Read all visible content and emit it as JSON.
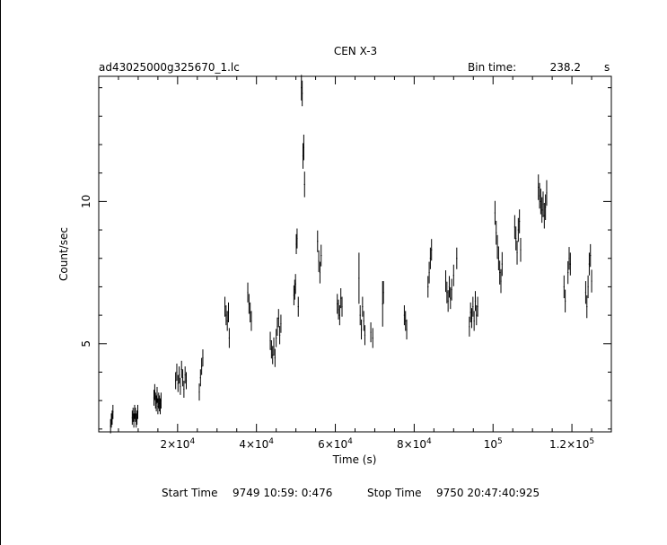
{
  "chart_data": {
    "type": "scatter",
    "title": "CEN X-3",
    "file_label": "ad43025000g325670_1.lc",
    "bin_time_label": "Bin time:",
    "bin_time_value": "238.2",
    "bin_time_unit": "s",
    "xlabel": "Time (s)",
    "ylabel": "Count/sec",
    "xlim": [
      0,
      130000
    ],
    "ylim": [
      1.9,
      14.4
    ],
    "x_ticks": [
      {
        "value": 20000,
        "mantissa": "2×10",
        "exp": "4"
      },
      {
        "value": 40000,
        "mantissa": "4×10",
        "exp": "4"
      },
      {
        "value": 60000,
        "mantissa": "6×10",
        "exp": "4"
      },
      {
        "value": 80000,
        "mantissa": "8×10",
        "exp": "4"
      },
      {
        "value": 100000,
        "mantissa": "10",
        "exp": "5"
      },
      {
        "value": 120000,
        "mantissa": "1.2×10",
        "exp": "5"
      }
    ],
    "y_ticks": [
      {
        "value": 5,
        "label": "5"
      },
      {
        "value": 10,
        "label": "10"
      }
    ],
    "footer": {
      "start_label": "Start Time",
      "start_value": "9749 10:59: 0:476",
      "stop_label": "Stop Time",
      "stop_value": "9750 20:47:40:925"
    },
    "series": [
      {
        "points": [
          [
            3000,
            2.1
          ],
          [
            3200,
            2.3
          ],
          [
            3400,
            2.4
          ],
          [
            3600,
            2.6
          ],
          [
            8500,
            2.4
          ],
          [
            8700,
            2.5
          ],
          [
            8900,
            2.3
          ],
          [
            9100,
            2.6
          ],
          [
            9300,
            2.5
          ],
          [
            9500,
            2.3
          ],
          [
            9700,
            2.4
          ],
          [
            9900,
            2.6
          ],
          [
            14000,
            3.1
          ],
          [
            14200,
            3.3
          ],
          [
            14400,
            3.0
          ],
          [
            14600,
            2.9
          ],
          [
            14800,
            3.2
          ],
          [
            15000,
            2.8
          ],
          [
            15200,
            3.0
          ],
          [
            15400,
            2.9
          ],
          [
            15600,
            2.8
          ],
          [
            15800,
            3.0
          ],
          [
            19500,
            3.7
          ],
          [
            19800,
            4.0
          ],
          [
            20100,
            3.6
          ],
          [
            20400,
            3.9
          ],
          [
            20700,
            3.5
          ],
          [
            21000,
            4.1
          ],
          [
            21300,
            3.8
          ],
          [
            21600,
            3.4
          ],
          [
            21900,
            3.9
          ],
          [
            22200,
            3.7
          ],
          [
            25500,
            3.3
          ],
          [
            25800,
            3.8
          ],
          [
            26100,
            4.2
          ],
          [
            26400,
            4.5
          ],
          [
            32000,
            6.3
          ],
          [
            32300,
            6.0
          ],
          [
            32600,
            5.8
          ],
          [
            32900,
            6.1
          ],
          [
            33100,
            5.2
          ],
          [
            37800,
            6.8
          ],
          [
            38100,
            6.4
          ],
          [
            38400,
            6.1
          ],
          [
            38700,
            5.8
          ],
          [
            43500,
            5.1
          ],
          [
            43800,
            4.8
          ],
          [
            44100,
            4.6
          ],
          [
            44400,
            4.9
          ],
          [
            44700,
            4.5
          ],
          [
            45000,
            5.2
          ],
          [
            45300,
            5.6
          ],
          [
            45600,
            5.9
          ],
          [
            45900,
            5.3
          ],
          [
            46200,
            5.7
          ],
          [
            49500,
            6.7
          ],
          [
            49700,
            6.9
          ],
          [
            49900,
            7.1
          ],
          [
            50100,
            8.5
          ],
          [
            50300,
            8.7
          ],
          [
            50600,
            6.3
          ],
          [
            51400,
            14.0
          ],
          [
            51600,
            13.8
          ],
          [
            51800,
            11.6
          ],
          [
            52000,
            11.9
          ],
          [
            52200,
            10.6
          ],
          [
            55500,
            8.6
          ],
          [
            55800,
            7.9
          ],
          [
            56100,
            7.5
          ],
          [
            56400,
            8.1
          ],
          [
            60500,
            6.4
          ],
          [
            60800,
            6.2
          ],
          [
            61100,
            6.0
          ],
          [
            61400,
            6.6
          ],
          [
            61700,
            6.3
          ],
          [
            66000,
            7.3
          ],
          [
            66300,
            6.0
          ],
          [
            66600,
            5.5
          ],
          [
            66900,
            6.3
          ],
          [
            67200,
            5.8
          ],
          [
            67500,
            5.3
          ],
          [
            69000,
            5.4
          ],
          [
            69500,
            5.2
          ],
          [
            72000,
            6.4
          ],
          [
            72200,
            6.8
          ],
          [
            77500,
            6.0
          ],
          [
            77800,
            5.8
          ],
          [
            78100,
            5.5
          ],
          [
            83500,
            7.0
          ],
          [
            83800,
            7.5
          ],
          [
            84100,
            8.0
          ],
          [
            84400,
            8.3
          ],
          [
            88000,
            7.2
          ],
          [
            88300,
            6.8
          ],
          [
            88600,
            6.5
          ],
          [
            88900,
            7.0
          ],
          [
            89200,
            6.6
          ],
          [
            89500,
            6.9
          ],
          [
            90000,
            7.4
          ],
          [
            90800,
            8.0
          ],
          [
            94000,
            5.6
          ],
          [
            94300,
            6.1
          ],
          [
            94600,
            5.9
          ],
          [
            94900,
            6.3
          ],
          [
            95200,
            5.8
          ],
          [
            95500,
            6.5
          ],
          [
            95800,
            6.0
          ],
          [
            96100,
            6.3
          ],
          [
            100500,
            9.6
          ],
          [
            100800,
            8.9
          ],
          [
            101100,
            8.4
          ],
          [
            101400,
            8.0
          ],
          [
            101700,
            7.5
          ],
          [
            102000,
            7.2
          ],
          [
            102300,
            7.8
          ],
          [
            105500,
            9.1
          ],
          [
            105800,
            8.7
          ],
          [
            106100,
            8.2
          ],
          [
            106400,
            9.0
          ],
          [
            106700,
            9.3
          ],
          [
            107000,
            8.3
          ],
          [
            111500,
            10.5
          ],
          [
            111800,
            10.2
          ],
          [
            112100,
            10.0
          ],
          [
            112400,
            9.7
          ],
          [
            112700,
            9.9
          ],
          [
            113000,
            9.5
          ],
          [
            113300,
            9.8
          ],
          [
            113600,
            10.3
          ],
          [
            118000,
            7.0
          ],
          [
            118300,
            6.5
          ],
          [
            119000,
            7.5
          ],
          [
            119300,
            8.0
          ],
          [
            119600,
            7.8
          ],
          [
            123500,
            6.8
          ],
          [
            123800,
            6.3
          ],
          [
            124100,
            7.0
          ],
          [
            124400,
            7.8
          ],
          [
            124700,
            8.1
          ],
          [
            125000,
            7.2
          ]
        ],
        "errors": [
          0.25,
          0.25,
          0.25,
          0.25,
          0.25,
          0.25,
          0.25,
          0.25,
          0.25,
          0.25,
          0.25,
          0.25,
          0.28,
          0.28,
          0.28,
          0.28,
          0.28,
          0.28,
          0.28,
          0.28,
          0.28,
          0.28,
          0.3,
          0.3,
          0.3,
          0.3,
          0.3,
          0.3,
          0.3,
          0.3,
          0.3,
          0.3,
          0.3,
          0.3,
          0.3,
          0.3,
          0.35,
          0.35,
          0.35,
          0.35,
          0.35,
          0.35,
          0.35,
          0.35,
          0.35,
          0.32,
          0.32,
          0.32,
          0.32,
          0.32,
          0.32,
          0.32,
          0.32,
          0.32,
          0.32,
          0.35,
          0.35,
          0.35,
          0.35,
          0.35,
          0.35,
          0.45,
          0.45,
          0.45,
          0.45,
          0.45,
          0.38,
          0.38,
          0.38,
          0.38,
          0.35,
          0.35,
          0.35,
          0.35,
          0.35,
          0.9,
          0.35,
          0.35,
          0.35,
          0.35,
          0.35,
          0.35,
          0.35,
          0.8,
          0.4,
          0.35,
          0.35,
          0.35,
          0.38,
          0.38,
          0.38,
          0.38,
          0.38,
          0.38,
          0.38,
          0.38,
          0.38,
          0.38,
          0.38,
          0.38,
          0.35,
          0.35,
          0.35,
          0.35,
          0.35,
          0.35,
          0.35,
          0.35,
          0.42,
          0.42,
          0.42,
          0.42,
          0.42,
          0.42,
          0.42,
          0.42,
          0.42,
          0.42,
          0.42,
          0.42,
          0.42,
          0.45,
          0.45,
          0.45,
          0.45,
          0.45,
          0.45,
          0.45,
          0.45,
          0.4,
          0.4,
          0.4,
          0.4,
          0.4,
          0.4,
          0.4,
          0.4,
          0.4,
          0.4,
          0.4
        ]
      }
    ],
    "grid": false,
    "legend": "none"
  }
}
